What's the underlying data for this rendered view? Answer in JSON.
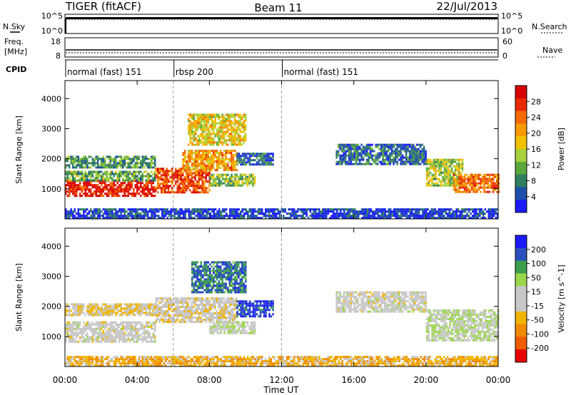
{
  "header": {
    "radar": "TIGER (fitACF)",
    "beam": "Beam 11",
    "date": "22/Jul/2013"
  },
  "strips": {
    "nsky_label": "N.Sky",
    "nsearch_label": "N.Search",
    "freq_label_1": "Freq.",
    "freq_label_2": "[MHz]",
    "nave_label": "Nave",
    "cpid_label": "CPID",
    "noise_left_ticks": [
      "10^5",
      "10^0"
    ],
    "noise_right_ticks": [
      "10^5",
      "10^0"
    ],
    "freq_left_ticks": [
      "18",
      "8"
    ],
    "nave_right_ticks": [
      "60",
      "0"
    ]
  },
  "cpid": {
    "segments": [
      {
        "label": "normal (fast) 151",
        "start_h": 0.0,
        "end_h": 6.0
      },
      {
        "label": "rbsp 200",
        "start_h": 6.0,
        "end_h": 12.0
      },
      {
        "label": "normal (fast) 151",
        "start_h": 12.0,
        "end_h": 24.0
      }
    ]
  },
  "colors": {
    "power_scale": [
      "#1b1bff",
      "#1f4fa8",
      "#2f7f5f",
      "#5aa83c",
      "#a8d23c",
      "#f2c200",
      "#f59a00",
      "#f56a00",
      "#e82a00",
      "#d80000"
    ],
    "velocity_scale": [
      "#1b1bff",
      "#2a4fbe",
      "#3c9f4c",
      "#9ad64a",
      "#c8c8c8",
      "#c8c8c8",
      "#f0b400",
      "#f08a00",
      "#f05a00",
      "#e80000"
    ]
  },
  "chart_data": [
    {
      "type": "heatmap",
      "name": "power-panel",
      "xlabel": "Time UT",
      "ylabel": "Slant Range [km]",
      "xlim": [
        0,
        24
      ],
      "ylim": [
        0,
        4600
      ],
      "x_ticks": [
        "00:00",
        "04:00",
        "08:00",
        "12:00",
        "16:00",
        "20:00",
        "00:00"
      ],
      "y_ticks": [
        "1000",
        "2000",
        "3000",
        "4000"
      ],
      "colorbar_label": "Power [dB]",
      "colorbar_ticks": [
        "4",
        "8",
        "12",
        "16",
        "20",
        "24",
        "28"
      ],
      "colorbar_range": [
        0,
        32
      ],
      "echo_bands": [
        {
          "t0": 0.0,
          "t1": 5.0,
          "r0": 800,
          "r1": 1300,
          "level": 0.92
        },
        {
          "t0": 0.0,
          "t1": 5.0,
          "r0": 1300,
          "r1": 1600,
          "level": 0.35
        },
        {
          "t0": 0.0,
          "t1": 5.0,
          "r0": 1700,
          "r1": 2100,
          "level": 0.3
        },
        {
          "t0": 5.0,
          "t1": 8.0,
          "r0": 900,
          "r1": 1700,
          "level": 0.8
        },
        {
          "t0": 6.5,
          "t1": 9.5,
          "r0": 1600,
          "r1": 2300,
          "level": 0.65
        },
        {
          "t0": 8.0,
          "t1": 10.5,
          "r0": 1100,
          "r1": 1500,
          "level": 0.4
        },
        {
          "t0": 6.8,
          "t1": 10.0,
          "r0": 2500,
          "r1": 3500,
          "level": 0.55
        },
        {
          "t0": 9.5,
          "t1": 11.5,
          "r0": 1800,
          "r1": 2200,
          "level": 0.2
        },
        {
          "t0": 15.0,
          "t1": 20.0,
          "r0": 1800,
          "r1": 2500,
          "level": 0.2
        },
        {
          "t0": 20.0,
          "t1": 22.0,
          "r0": 1100,
          "r1": 2000,
          "level": 0.45
        },
        {
          "t0": 21.5,
          "t1": 24.0,
          "r0": 900,
          "r1": 1500,
          "level": 0.75
        },
        {
          "t0": 0.0,
          "t1": 24.0,
          "r0": 50,
          "r1": 350,
          "level": 0.1
        }
      ]
    },
    {
      "type": "heatmap",
      "name": "velocity-panel",
      "xlabel": "Time UT",
      "ylabel": "Slant Range [km]",
      "xlim": [
        0,
        24
      ],
      "ylim": [
        0,
        4600
      ],
      "x_ticks": [
        "00:00",
        "04:00",
        "08:00",
        "12:00",
        "16:00",
        "20:00",
        "00:00"
      ],
      "y_ticks": [
        "1000",
        "2000",
        "3000",
        "4000"
      ],
      "colorbar_label": "Velocity [m s^-1]",
      "colorbar_ticks": [
        "200",
        "100",
        "50",
        "15",
        "-15",
        "-50",
        "-100",
        "-200"
      ],
      "colorbar_range": [
        -250,
        250
      ],
      "echo_bands": [
        {
          "t0": 0.0,
          "t1": 5.0,
          "r0": 800,
          "r1": 1500,
          "vel": 0
        },
        {
          "t0": 0.0,
          "t1": 5.0,
          "r0": 1700,
          "r1": 2100,
          "vel": -40
        },
        {
          "t0": 5.0,
          "t1": 9.5,
          "r0": 1500,
          "r1": 2300,
          "vel": -20
        },
        {
          "t0": 8.0,
          "t1": 10.5,
          "r0": 1100,
          "r1": 1500,
          "vel": 30
        },
        {
          "t0": 7.0,
          "t1": 10.0,
          "r0": 2500,
          "r1": 3500,
          "vel": 150
        },
        {
          "t0": 9.5,
          "t1": 11.5,
          "r0": 1700,
          "r1": 2200,
          "vel": 200
        },
        {
          "t0": 15.0,
          "t1": 20.0,
          "r0": 1800,
          "r1": 2500,
          "vel": 0
        },
        {
          "t0": 20.0,
          "t1": 24.0,
          "r0": 900,
          "r1": 1900,
          "vel": 40
        },
        {
          "t0": 0.0,
          "t1": 24.0,
          "r0": 50,
          "r1": 350,
          "vel": -80
        }
      ]
    }
  ]
}
